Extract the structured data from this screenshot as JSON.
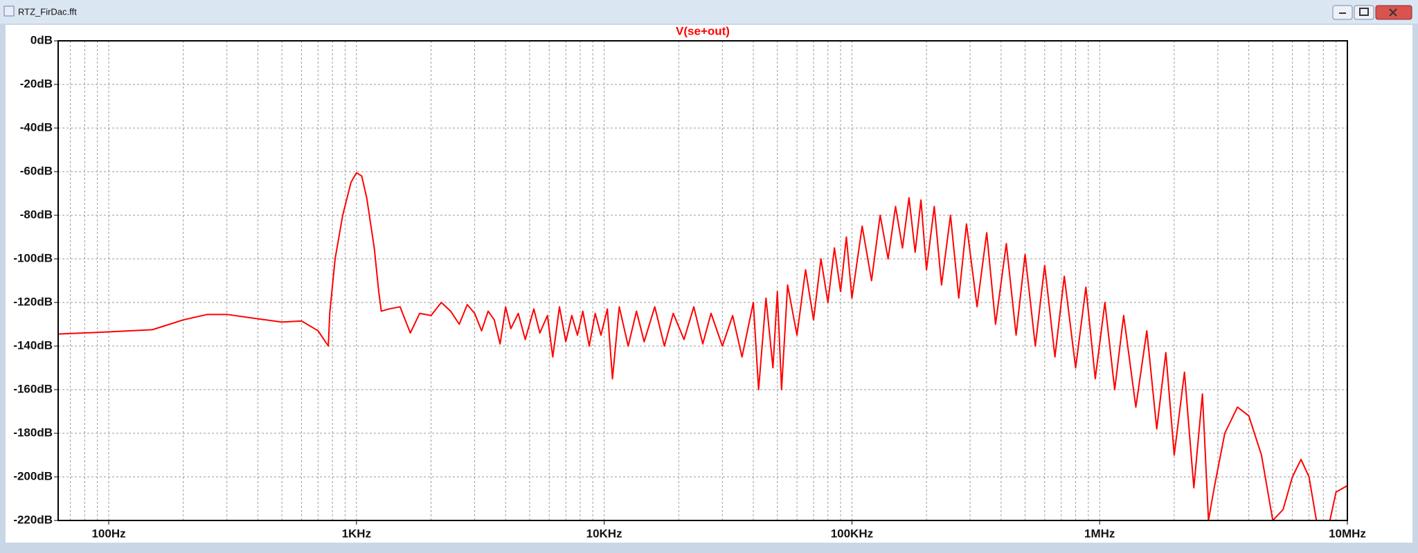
{
  "window": {
    "title": "RTZ_FirDac.fft"
  },
  "chart_data": {
    "type": "line",
    "xscale": "log",
    "grid": true,
    "minor_grid": true,
    "xlim": [
      62.5,
      10000000
    ],
    "ylim": [
      -220,
      0
    ],
    "xticks": [
      {
        "value": 100,
        "label": "100Hz"
      },
      {
        "value": 1000,
        "label": "1KHz"
      },
      {
        "value": 10000,
        "label": "10KHz"
      },
      {
        "value": 100000,
        "label": "100KHz"
      },
      {
        "value": 1000000,
        "label": "1MHz"
      },
      {
        "value": 10000000,
        "label": "10MHz"
      }
    ],
    "yticks": [
      {
        "value": 0,
        "label": "0dB"
      },
      {
        "value": -20,
        "label": "-20dB"
      },
      {
        "value": -40,
        "label": "-40dB"
      },
      {
        "value": -60,
        "label": "-60dB"
      },
      {
        "value": -80,
        "label": "-80dB"
      },
      {
        "value": -100,
        "label": "-100dB"
      },
      {
        "value": -120,
        "label": "-120dB"
      },
      {
        "value": -140,
        "label": "-140dB"
      },
      {
        "value": -160,
        "label": "-160dB"
      },
      {
        "value": -180,
        "label": "-180dB"
      },
      {
        "value": -200,
        "label": "-200dB"
      },
      {
        "value": -220,
        "label": "-220dB"
      }
    ],
    "series": [
      {
        "name": "V(se+out)",
        "color": "#ff0000",
        "x": [
          62.5,
          100,
          150,
          200,
          250,
          300,
          400,
          500,
          600,
          700,
          770,
          780,
          820,
          880,
          950,
          1000,
          1050,
          1100,
          1180,
          1230,
          1260,
          1350,
          1500,
          1650,
          1800,
          2000,
          2200,
          2400,
          2600,
          2800,
          3000,
          3200,
          3400,
          3600,
          3800,
          4000,
          4200,
          4500,
          4800,
          5200,
          5500,
          5900,
          6200,
          6600,
          7000,
          7400,
          7800,
          8200,
          8700,
          9200,
          9700,
          10300,
          10800,
          11500,
          12500,
          13500,
          14500,
          16000,
          17500,
          19000,
          21000,
          23000,
          25000,
          27000,
          30000,
          33000,
          36000,
          40000,
          42000,
          45000,
          48000,
          50000,
          52000,
          55000,
          60000,
          65000,
          70000,
          75000,
          80000,
          85000,
          90000,
          95000,
          100000,
          110000,
          120000,
          130000,
          140000,
          150000,
          160000,
          170000,
          180000,
          190000,
          200000,
          215000,
          230000,
          250000,
          270000,
          290000,
          320000,
          350000,
          380000,
          420000,
          460000,
          500000,
          550000,
          600000,
          660000,
          720000,
          800000,
          880000,
          960000,
          1050000,
          1150000,
          1250000,
          1400000,
          1550000,
          1700000,
          1850000,
          2000000,
          2200000,
          2400000,
          2600000,
          2750000,
          2900000,
          3200000,
          3600000,
          4000000,
          4500000,
          5000000,
          5500000,
          6000000,
          6500000,
          7000000,
          7500000,
          8500000,
          9000000,
          10000000
        ],
        "y": [
          -134.5,
          -133.5,
          -132.5,
          -128,
          -125.5,
          -125.5,
          -127.5,
          -129,
          -128.5,
          -133,
          -140,
          -125,
          -100,
          -80,
          -65,
          -60.5,
          -62,
          -72,
          -95,
          -115,
          -124,
          -123,
          -122,
          -134,
          -125,
          -126,
          -120,
          -124,
          -130,
          -121,
          -125,
          -133,
          -124,
          -128,
          -139,
          -122,
          -132,
          -125,
          -137,
          -123,
          -134,
          -126,
          -145,
          -122,
          -138,
          -126,
          -135,
          -124,
          -140,
          -125,
          -135,
          -123,
          -155,
          -122,
          -140,
          -124,
          -138,
          -122,
          -140,
          -125,
          -137,
          -122,
          -139,
          -125,
          -140,
          -126,
          -145,
          -120,
          -160,
          -118,
          -150,
          -115,
          -160,
          -112,
          -135,
          -105,
          -128,
          -100,
          -120,
          -95,
          -115,
          -90,
          -118,
          -85,
          -110,
          -80,
          -100,
          -76,
          -95,
          -72,
          -97,
          -73,
          -105,
          -76,
          -112,
          -80,
          -118,
          -84,
          -122,
          -88,
          -130,
          -93,
          -135,
          -98,
          -140,
          -103,
          -145,
          -108,
          -150,
          -113,
          -155,
          -120,
          -160,
          -126,
          -168,
          -133,
          -178,
          -143,
          -190,
          -152,
          -205,
          -162,
          -220,
          -205,
          -180,
          -168,
          -172,
          -190,
          -220,
          -215,
          -200,
          -192,
          -200,
          -220,
          -220,
          -207,
          -204
        ]
      }
    ]
  }
}
